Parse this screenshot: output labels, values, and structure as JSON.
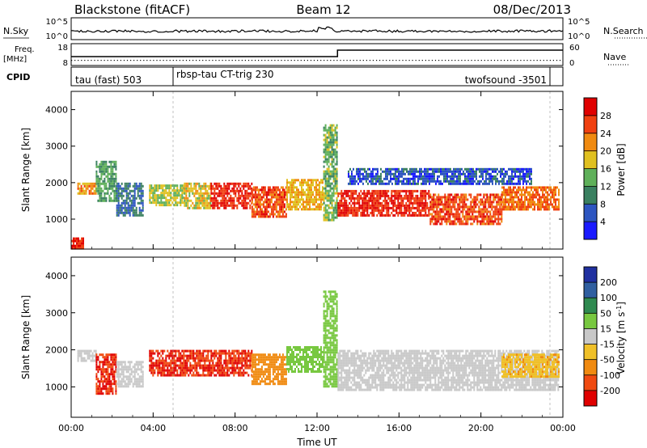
{
  "header": {
    "station": "Blackstone (fitACF)",
    "beam": "Beam 12",
    "date": "08/Dec/2013"
  },
  "summary": {
    "nsky_label": "N.Sky",
    "nsky_ticks": [
      "10^5",
      "10^0"
    ],
    "nsearch_label": "N.Search",
    "nsearch_ticks": [
      "10^5",
      "10^0"
    ],
    "freq_label": "Freq.",
    "freq_unit": "[MHz]",
    "freq_ticks": [
      "18",
      "8"
    ],
    "nave_label": "Nave",
    "nave_ticks": [
      "60",
      "0"
    ],
    "cpid_label": "CPID",
    "cpid_segments": [
      "tau (fast) 503",
      "rbsp-tau CT-trig 230",
      "twofsound -3501"
    ]
  },
  "panels": {
    "ylabel": "Slant Range [km]",
    "y_ticks": [
      "1000",
      "2000",
      "3000",
      "4000"
    ],
    "x_ticks": [
      "00:00",
      "04:00",
      "08:00",
      "12:00",
      "16:00",
      "20:00",
      "00:00"
    ],
    "xlabel": "Time UT"
  },
  "power_colorbar": {
    "label": "Power [dB]",
    "ticks": [
      "4",
      "8",
      "12",
      "16",
      "20",
      "24",
      "28"
    ],
    "colors": [
      "#1a1aff",
      "#2d55c0",
      "#3a8060",
      "#5fb05a",
      "#e0c020",
      "#f08a10",
      "#f04010",
      "#e00000"
    ]
  },
  "velocity_colorbar": {
    "label": "Velocity [m s",
    "label_sup": "-1",
    "label_end": "]",
    "ticks": [
      "200",
      "100",
      "50",
      "15",
      "-15",
      "-50",
      "-100",
      "-200"
    ],
    "colors": [
      "#2030a0",
      "#305fa0",
      "#2f8a50",
      "#78c840",
      "#c8c8c8",
      "#f0c028",
      "#f08a10",
      "#f04a10",
      "#e00000"
    ]
  },
  "chart_data": {
    "type": "heatmap",
    "x_range_ut_hours": [
      0,
      24
    ],
    "y_range_km": [
      180,
      4500
    ],
    "power_regions": [
      {
        "t": [
          0.0,
          0.6
        ],
        "r": [
          180,
          500
        ],
        "db": 28
      },
      {
        "t": [
          0.3,
          1.2
        ],
        "r": [
          1700,
          2000
        ],
        "db": 22
      },
      {
        "t": [
          1.2,
          2.2
        ],
        "r": [
          1500,
          2600
        ],
        "db": 12
      },
      {
        "t": [
          2.2,
          3.5
        ],
        "r": [
          1100,
          2000
        ],
        "db": 8
      },
      {
        "t": [
          3.8,
          5.5
        ],
        "r": [
          1400,
          1950
        ],
        "db": 16
      },
      {
        "t": [
          5.5,
          6.8
        ],
        "r": [
          1300,
          2000
        ],
        "db": 18
      },
      {
        "t": [
          6.8,
          8.8
        ],
        "r": [
          1300,
          2000
        ],
        "db": 28
      },
      {
        "t": [
          8.8,
          10.5
        ],
        "r": [
          1100,
          1900
        ],
        "db": 26
      },
      {
        "t": [
          10.5,
          12.3
        ],
        "r": [
          1300,
          2100
        ],
        "db": 20
      },
      {
        "t": [
          12.3,
          13.0
        ],
        "r": [
          1000,
          3600
        ],
        "db": 14
      },
      {
        "t": [
          13.0,
          17.5
        ],
        "r": [
          1100,
          1800
        ],
        "db": 28
      },
      {
        "t": [
          17.5,
          21.0
        ],
        "r": [
          900,
          1700
        ],
        "db": 26
      },
      {
        "t": [
          21.0,
          23.8
        ],
        "r": [
          1300,
          1900
        ],
        "db": 24
      },
      {
        "t": [
          13.5,
          22.5
        ],
        "r": [
          2000,
          2400
        ],
        "db": 6
      }
    ],
    "velocity_regions": [
      {
        "t": [
          0.3,
          1.2
        ],
        "r": [
          1700,
          2000
        ],
        "v": 0
      },
      {
        "t": [
          1.2,
          2.2
        ],
        "r": [
          800,
          1900
        ],
        "v": -200
      },
      {
        "t": [
          2.2,
          3.5
        ],
        "r": [
          1000,
          1700
        ],
        "v": 0
      },
      {
        "t": [
          3.8,
          8.8
        ],
        "r": [
          1300,
          2000
        ],
        "v": -200
      },
      {
        "t": [
          8.8,
          10.5
        ],
        "r": [
          1100,
          1900
        ],
        "v": -80
      },
      {
        "t": [
          10.5,
          12.3
        ],
        "r": [
          1400,
          2100
        ],
        "v": 30
      },
      {
        "t": [
          12.3,
          13.0
        ],
        "r": [
          1000,
          3600
        ],
        "v": 30
      },
      {
        "t": [
          13.0,
          23.8
        ],
        "r": [
          900,
          2000
        ],
        "v": 0
      },
      {
        "t": [
          21.0,
          23.8
        ],
        "r": [
          1300,
          1900
        ],
        "v": -40
      }
    ]
  }
}
